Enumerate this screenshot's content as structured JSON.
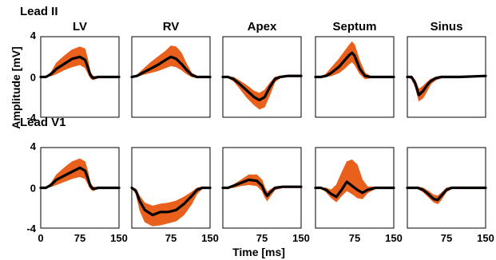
{
  "chart_data": {
    "type": "line",
    "xlabel": "Time [ms]",
    "ylabel": "Amplitude [mV]",
    "xlim": [
      0,
      150
    ],
    "ylim": [
      -4,
      4
    ],
    "x_ticks_first_panel": [
      "0",
      "75",
      "150"
    ],
    "x_ticks_other_panels": [
      "75",
      "150"
    ],
    "y_ticks": [
      "4",
      "0",
      "-4"
    ],
    "columns": [
      "LV",
      "RV",
      "Apex",
      "Septum",
      "Sinus"
    ],
    "colors": {
      "envelope": "#e8601c",
      "mean": "#000000"
    },
    "rows": [
      {
        "lead": "Lead II",
        "panels": [
          {
            "site": "LV",
            "x": [
              0,
              10,
              20,
              30,
              45,
              60,
              75,
              85,
              90,
              95,
              100,
              110,
              120,
              140,
              150
            ],
            "mean": [
              0,
              0,
              0.3,
              0.8,
              1.3,
              1.8,
              2.0,
              1.7,
              1.0,
              0.2,
              -0.1,
              0,
              0,
              0,
              0
            ],
            "upper": [
              0,
              0,
              0.5,
              1.4,
              2.1,
              2.7,
              3.0,
              2.8,
              1.8,
              0.5,
              0.1,
              0,
              0,
              0,
              0
            ],
            "lower": [
              0,
              0,
              0.1,
              0.3,
              0.7,
              1.0,
              1.2,
              0.9,
              0.4,
              -0.1,
              -0.3,
              -0.1,
              0,
              0,
              0
            ]
          },
          {
            "site": "RV",
            "x": [
              0,
              10,
              20,
              35,
              50,
              65,
              75,
              85,
              95,
              105,
              115,
              125,
              140,
              150
            ],
            "mean": [
              0,
              0.1,
              0.4,
              0.8,
              1.2,
              1.7,
              2.0,
              1.8,
              1.3,
              0.7,
              0.2,
              0,
              0,
              0
            ],
            "upper": [
              0,
              0.2,
              0.7,
              1.4,
              2.0,
              2.6,
              3.1,
              3.0,
              2.4,
              1.3,
              0.4,
              0.1,
              0,
              0
            ],
            "lower": [
              0,
              0,
              0.2,
              0.4,
              0.6,
              0.9,
              1.1,
              1.0,
              0.7,
              0.3,
              0,
              -0.1,
              0,
              0
            ]
          },
          {
            "site": "Apex",
            "x": [
              0,
              10,
              20,
              30,
              45,
              60,
              70,
              80,
              90,
              100,
              110,
              125,
              140,
              150
            ],
            "mean": [
              0,
              0,
              -0.2,
              -0.6,
              -1.3,
              -2.0,
              -2.3,
              -2.0,
              -1.0,
              -0.2,
              0,
              0.1,
              0.1,
              0.1
            ],
            "upper": [
              0,
              0,
              0,
              -0.3,
              -0.8,
              -1.4,
              -1.6,
              -1.3,
              -0.6,
              0,
              0.1,
              0.2,
              0.2,
              0.2
            ],
            "lower": [
              0,
              -0.1,
              -0.4,
              -1.0,
              -2.0,
              -2.8,
              -3.2,
              -3.0,
              -1.8,
              -0.5,
              -0.1,
              0,
              0,
              0
            ]
          },
          {
            "site": "Septum",
            "x": [
              0,
              10,
              20,
              30,
              45,
              55,
              65,
              70,
              75,
              85,
              95,
              105,
              120,
              140,
              150
            ],
            "mean": [
              0,
              0,
              0.1,
              0.4,
              1.0,
              1.6,
              2.2,
              2.4,
              2.1,
              0.8,
              0.1,
              0,
              0,
              0,
              0
            ],
            "upper": [
              0,
              0,
              0.3,
              0.9,
              1.8,
              2.5,
              3.2,
              3.5,
              3.2,
              1.6,
              0.4,
              0.1,
              0,
              0,
              0
            ],
            "lower": [
              0,
              0,
              0,
              0.1,
              0.4,
              0.8,
              1.3,
              1.5,
              1.2,
              0.3,
              -0.2,
              -0.1,
              0,
              0,
              0
            ]
          },
          {
            "site": "Sinus",
            "x": [
              0,
              8,
              15,
              22,
              30,
              38,
              45,
              55,
              65,
              80,
              100,
              150
            ],
            "mean": [
              0,
              0,
              -0.6,
              -1.8,
              -1.4,
              -0.8,
              -0.4,
              -0.1,
              0,
              0,
              0,
              0.1
            ],
            "upper": [
              0,
              0.1,
              -0.3,
              -1.2,
              -0.9,
              -0.5,
              -0.2,
              0,
              0.1,
              0.1,
              0.1,
              0.1
            ],
            "lower": [
              0,
              -0.2,
              -1.0,
              -2.4,
              -2.1,
              -1.4,
              -0.7,
              -0.3,
              -0.1,
              0,
              0,
              0
            ]
          }
        ]
      },
      {
        "lead": "Lead V1",
        "panels": [
          {
            "site": "LV",
            "x": [
              0,
              10,
              20,
              30,
              45,
              60,
              75,
              85,
              90,
              95,
              100,
              110,
              120,
              140,
              150
            ],
            "mean": [
              0,
              0,
              0.3,
              0.8,
              1.2,
              1.6,
              2.0,
              1.7,
              1.0,
              0.2,
              -0.1,
              0,
              0,
              0,
              0
            ],
            "upper": [
              0,
              0,
              0.5,
              1.3,
              2.0,
              2.6,
              2.9,
              2.6,
              1.7,
              0.5,
              0.1,
              0,
              0,
              0,
              0
            ],
            "lower": [
              0,
              0,
              0.1,
              0.3,
              0.6,
              0.9,
              1.1,
              0.9,
              0.4,
              -0.1,
              -0.3,
              -0.1,
              0,
              0,
              0
            ]
          },
          {
            "site": "RV",
            "x": [
              0,
              8,
              15,
              25,
              40,
              55,
              70,
              85,
              100,
              115,
              125,
              135,
              150
            ],
            "mean": [
              0,
              -0.3,
              -1.3,
              -2.2,
              -2.7,
              -2.4,
              -2.4,
              -2.2,
              -1.6,
              -0.8,
              -0.2,
              0,
              0
            ],
            "upper": [
              0,
              -0.1,
              -0.8,
              -1.5,
              -1.8,
              -1.6,
              -1.5,
              -1.3,
              -0.9,
              -0.4,
              0,
              0.1,
              0
            ],
            "lower": [
              0,
              -0.6,
              -2.2,
              -3.4,
              -3.8,
              -3.7,
              -3.5,
              -3.3,
              -2.7,
              -1.6,
              -0.6,
              -0.1,
              0
            ]
          },
          {
            "site": "Apex",
            "x": [
              0,
              10,
              20,
              35,
              50,
              65,
              75,
              80,
              85,
              90,
              100,
              115,
              130,
              150
            ],
            "mean": [
              0,
              0,
              0.2,
              0.5,
              0.8,
              0.7,
              0.2,
              -0.4,
              -0.8,
              -0.5,
              0,
              0.1,
              0.1,
              0.1
            ],
            "upper": [
              0,
              0,
              0.3,
              0.8,
              1.3,
              1.3,
              0.8,
              0.1,
              -0.4,
              -0.2,
              0.1,
              0.2,
              0.2,
              0.1
            ],
            "lower": [
              0,
              0,
              0,
              0.2,
              0.3,
              0.2,
              -0.3,
              -0.9,
              -1.3,
              -0.9,
              -0.2,
              0,
              0,
              0
            ]
          },
          {
            "site": "Septum",
            "x": [
              0,
              10,
              20,
              30,
              40,
              50,
              60,
              70,
              80,
              90,
              100,
              115,
              130,
              150
            ],
            "mean": [
              0,
              0,
              -0.2,
              -0.6,
              -0.9,
              -0.2,
              0.6,
              0.2,
              -0.2,
              -0.5,
              -0.2,
              0,
              0,
              0
            ],
            "upper": [
              0,
              0,
              0,
              -0.2,
              0.3,
              1.5,
              2.6,
              2.8,
              2.3,
              0.8,
              0.1,
              0.1,
              0,
              0
            ],
            "lower": [
              0,
              0,
              -0.4,
              -1.0,
              -1.4,
              -0.8,
              -0.3,
              -0.6,
              -1.0,
              -1.1,
              -0.5,
              -0.1,
              0,
              0
            ]
          },
          {
            "site": "Sinus",
            "x": [
              0,
              10,
              20,
              30,
              40,
              50,
              58,
              65,
              75,
              85,
              100,
              150
            ],
            "mean": [
              0,
              0,
              0,
              -0.2,
              -0.6,
              -1.1,
              -1.2,
              -0.8,
              -0.2,
              0,
              0,
              0
            ],
            "upper": [
              0,
              0,
              0.1,
              0,
              -0.3,
              -0.7,
              -0.8,
              -0.5,
              0,
              0.1,
              0.1,
              0.1
            ],
            "lower": [
              0,
              0,
              -0.1,
              -0.4,
              -0.9,
              -1.4,
              -1.6,
              -1.2,
              -0.4,
              -0.1,
              0,
              0
            ]
          }
        ]
      }
    ]
  }
}
